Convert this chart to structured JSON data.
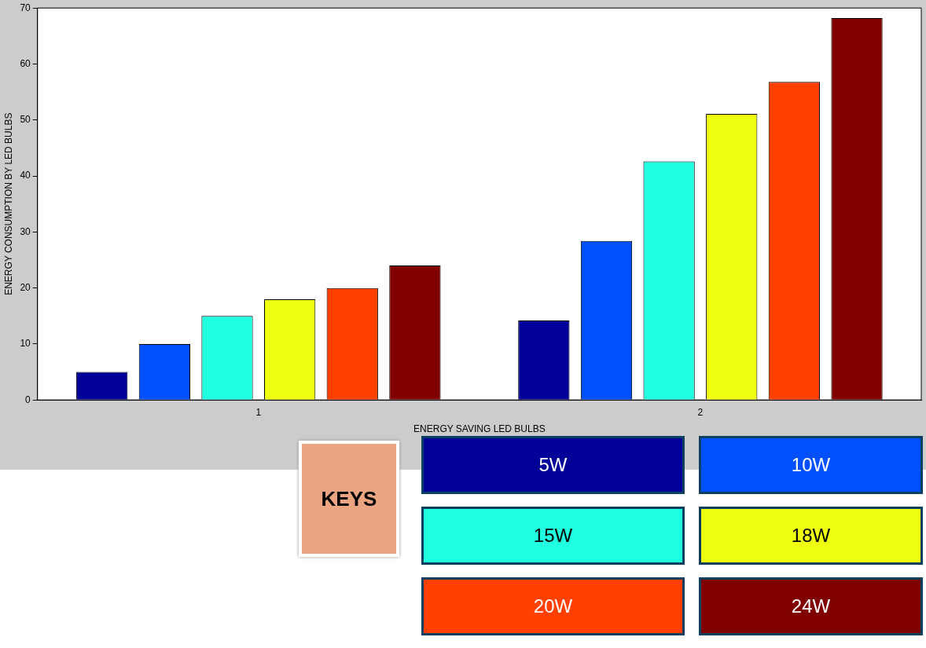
{
  "chart_data": {
    "type": "bar",
    "xlabel": "ENERGY SAVING LED BULBS",
    "ylabel": "ENERGY CONSUMPTION BY LED BULBS",
    "legend_title": "KEYS",
    "legend": "bottom",
    "grid": false,
    "categories": [
      "1",
      "2"
    ],
    "ylim": [
      0,
      70
    ],
    "yticks": [
      0,
      10,
      20,
      30,
      40,
      50,
      60,
      70
    ],
    "series": [
      {
        "name": "5W",
        "color": "#000099",
        "values": [
          5,
          14.2
        ]
      },
      {
        "name": "10W",
        "color": "#0050ff",
        "values": [
          10,
          28.4
        ]
      },
      {
        "name": "15W",
        "color": "#20ffe0",
        "values": [
          15,
          42.6
        ]
      },
      {
        "name": "18W",
        "color": "#eeff10",
        "values": [
          18,
          51.1
        ]
      },
      {
        "name": "20W",
        "color": "#ff4000",
        "values": [
          20,
          56.8
        ]
      },
      {
        "name": "24W",
        "color": "#800000",
        "values": [
          24,
          68.2
        ]
      }
    ]
  }
}
